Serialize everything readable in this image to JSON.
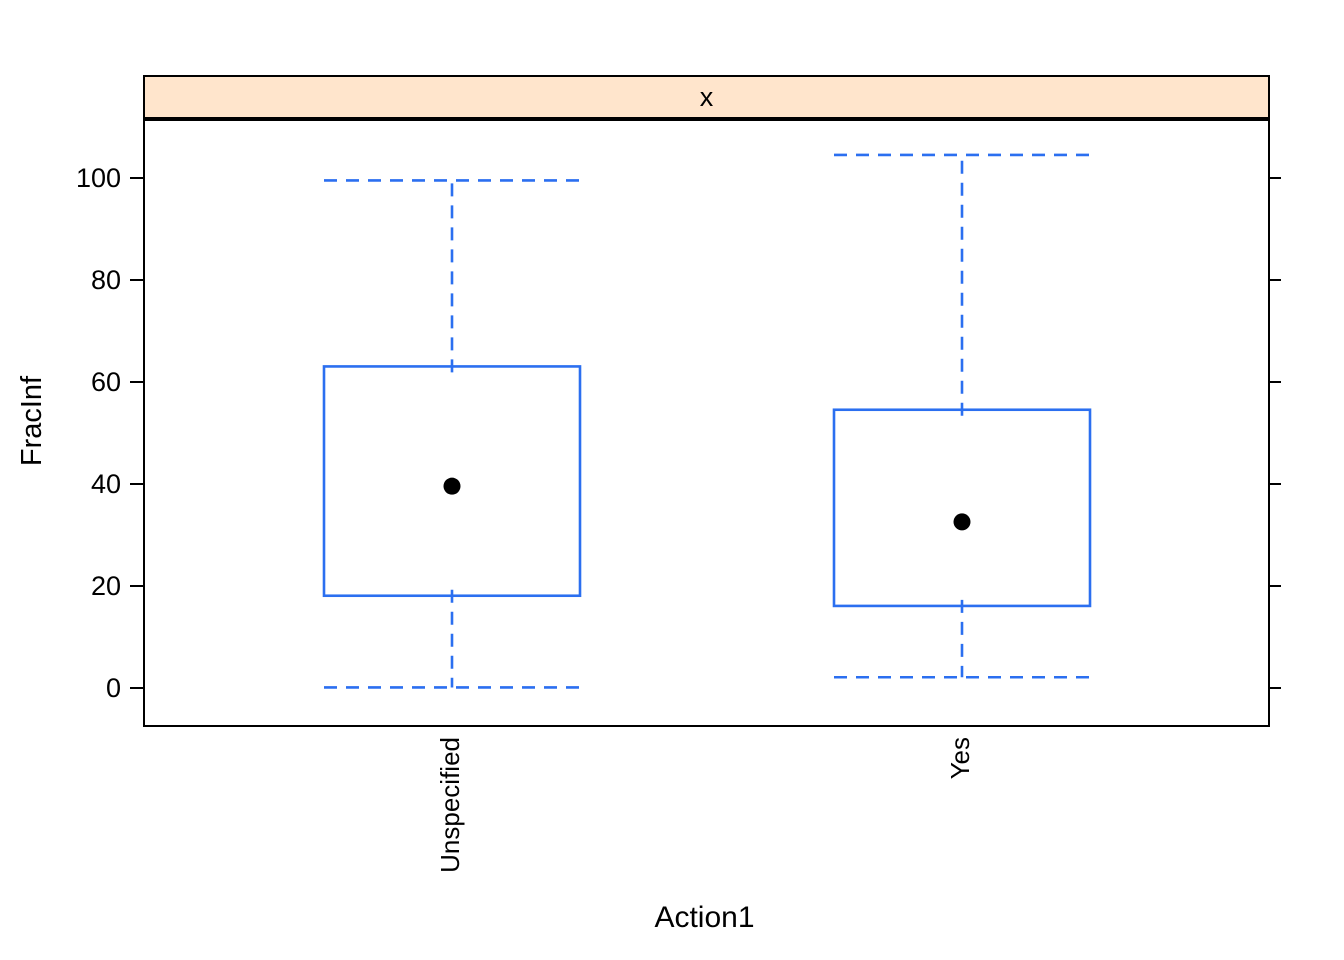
{
  "chart_data": {
    "type": "boxplot",
    "strip_label": "x",
    "xlabel": "Action1",
    "ylabel": "FracInf",
    "categories": [
      "Unspecified",
      "Yes"
    ],
    "yticks": [
      0,
      20,
      40,
      60,
      80,
      100
    ],
    "ylim": [
      -7,
      111.5
    ],
    "grid": false,
    "series": [
      {
        "category": "Unspecified",
        "whisker_low": 0.5,
        "q1": 18.5,
        "median": 40,
        "q3": 63.5,
        "whisker_high": 100
      },
      {
        "category": "Yes",
        "whisker_low": 2.5,
        "q1": 16.5,
        "median": 33,
        "q3": 55,
        "whisker_high": 105
      }
    ],
    "colors": {
      "box": "#2B6FF0",
      "median_dot": "#000000",
      "strip_bg": "#FFE5CC",
      "frame": "#000000"
    }
  }
}
